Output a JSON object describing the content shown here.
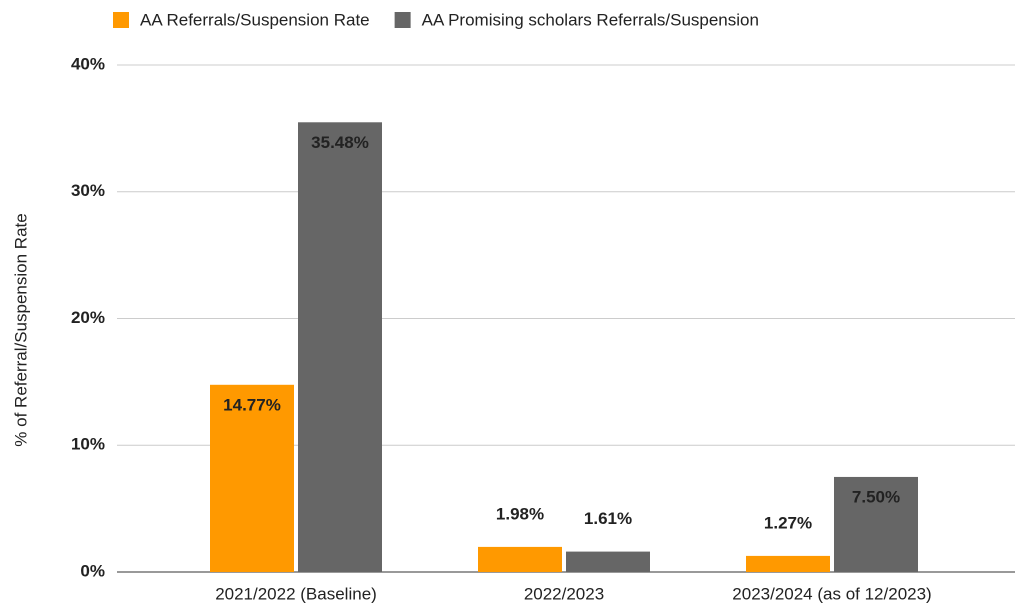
{
  "chart_data": {
    "type": "bar",
    "y_label": "% of Referral/Suspension Rate",
    "categories": [
      "2021/2022 (Baseline)",
      "2022/2023",
      "2023/2024 (as of 12/2023)"
    ],
    "series": [
      {
        "name": "AA Referrals/Suspension Rate",
        "color": "#ff9900",
        "values": [
          14.77,
          1.98,
          1.27
        ],
        "value_labels": [
          "14.77%",
          "1.98%",
          "1.27%"
        ]
      },
      {
        "name": "AA Promising scholars Referrals/Suspension",
        "color": "#666666",
        "values": [
          35.48,
          1.61,
          7.5
        ],
        "value_labels": [
          "35.48%",
          "1.61%",
          "7.50%"
        ]
      }
    ],
    "ylim": [
      0,
      40
    ],
    "yticks": [
      {
        "value": 0,
        "label": "0%"
      },
      {
        "value": 10,
        "label": "10%"
      },
      {
        "value": 20,
        "label": "20%"
      },
      {
        "value": 30,
        "label": "30%"
      },
      {
        "value": 40,
        "label": "40%"
      }
    ],
    "grid": true,
    "legend": "top"
  }
}
